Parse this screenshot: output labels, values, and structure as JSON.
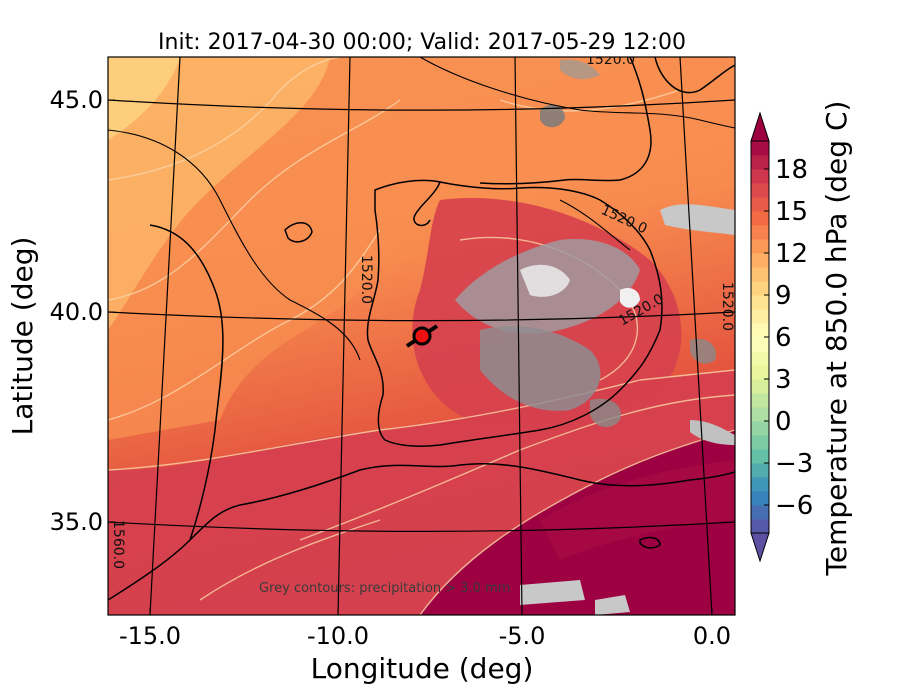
{
  "title": "Init: 2017-04-30 00:00; Valid: 2017-05-29 12:00",
  "map": {
    "xlabel": "Longitude (deg)",
    "ylabel": "Latitude (deg)",
    "xticks": [
      "-15.0",
      "-10.0",
      "-5.0",
      "0.0"
    ],
    "yticks": [
      "45.0",
      "40.0",
      "35.0"
    ],
    "xlim": [
      -16,
      0.2
    ],
    "ylim": [
      32.7,
      46.0
    ],
    "contour_labels": [
      "1520.0",
      "1520.0",
      "1520.0",
      "1520.0",
      "1520.0",
      "1560.0"
    ],
    "note": "Grey contours: precipitation > 3.0 mm",
    "marker": {
      "lon": -7.6,
      "lat": 39.3,
      "color": "#ee1111"
    }
  },
  "colorbar": {
    "label": "Temperature at 850.0 hPa (deg C)",
    "ticks": [
      "18",
      "15",
      "12",
      "9",
      "6",
      "3",
      "0",
      "−3",
      "−6"
    ],
    "tick_values": [
      18,
      15,
      12,
      9,
      6,
      3,
      0,
      -3,
      -6
    ],
    "range": [
      -8,
      20
    ],
    "colormap": "Spectral_r",
    "extend": "both"
  },
  "colors": {
    "hot": "#9e0142",
    "warm": "#d53e4f",
    "orange": "#f46d43",
    "light_orange": "#fdae61",
    "yellow": "#fee08b",
    "grey_precip": "#c8c8c8"
  }
}
